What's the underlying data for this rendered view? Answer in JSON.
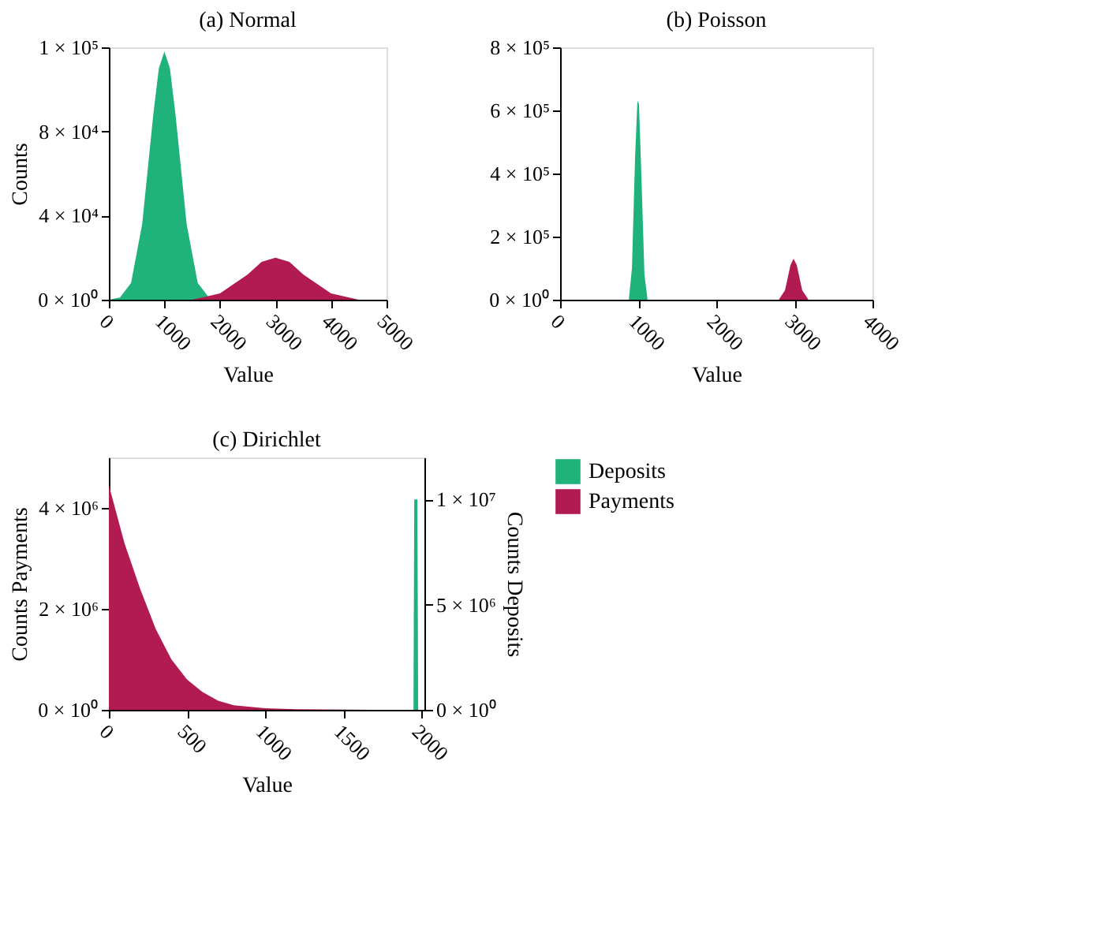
{
  "chart_data": [
    {
      "type": "area",
      "title": "(a) Normal",
      "xlabel": "Value",
      "ylabel": "Counts",
      "xlim": [
        0,
        5000
      ],
      "xticks": [
        0,
        1000,
        2000,
        3000,
        4000,
        5000
      ],
      "ylim": [
        0,
        120000
      ],
      "yticks": [
        {
          "value": 0,
          "label": "0 × 10⁰"
        },
        {
          "value": 40000,
          "label": "4 × 10⁴"
        },
        {
          "value": 80000,
          "label": "8 × 10⁴"
        },
        {
          "value": 120000,
          "label": "1 × 10⁵"
        }
      ],
      "series": [
        {
          "color": "#20b27b",
          "x": [
            0,
            200,
            400,
            600,
            800,
            900,
            1000,
            1100,
            1200,
            1400,
            1600,
            1800,
            2000
          ],
          "values": [
            0,
            1000,
            8000,
            36000,
            88000,
            110000,
            118000,
            110000,
            88000,
            36000,
            8000,
            1000,
            0
          ]
        },
        {
          "color": "#b11b52",
          "x": [
            1000,
            1500,
            2000,
            2500,
            2750,
            3000,
            3250,
            3500,
            4000,
            4500,
            5000
          ],
          "values": [
            0,
            0,
            3000,
            12000,
            18000,
            20000,
            18000,
            12000,
            3000,
            0,
            0
          ]
        }
      ]
    },
    {
      "type": "area",
      "title": "(b) Poisson",
      "xlabel": "Value",
      "xlim": [
        0,
        4000
      ],
      "xticks": [
        0,
        1000,
        2000,
        3000,
        4000
      ],
      "ylim": [
        0,
        800000
      ],
      "yticks": [
        {
          "value": 0,
          "label": "0 × 10⁰"
        },
        {
          "value": 200000,
          "label": "2 × 10⁵"
        },
        {
          "value": 400000,
          "label": "4 × 10⁵"
        },
        {
          "value": 600000,
          "label": "6 × 10⁵"
        },
        {
          "value": 800000,
          "label": "8 × 10⁵"
        }
      ],
      "series": [
        {
          "color": "#20b27b",
          "x": [
            880,
            920,
            960,
            990,
            1010,
            1040,
            1080,
            1120
          ],
          "values": [
            0,
            100000,
            450000,
            630000,
            620000,
            400000,
            80000,
            0
          ]
        },
        {
          "color": "#b11b52",
          "x": [
            2800,
            2880,
            2950,
            2990,
            3030,
            3100,
            3180
          ],
          "values": [
            0,
            30000,
            110000,
            130000,
            110000,
            30000,
            0
          ]
        }
      ]
    },
    {
      "type": "area",
      "title": "(c) Dirichlet",
      "xlabel": "Value",
      "ylabel": "Counts Payments",
      "y2label": "Counts Deposits",
      "legend": "right",
      "xlim": [
        0,
        2020
      ],
      "xticks": [
        0,
        500,
        1000,
        1500,
        2000
      ],
      "ylim": [
        0,
        5000000
      ],
      "yticks": [
        {
          "value": 0,
          "label": "0 × 10⁰"
        },
        {
          "value": 2000000,
          "label": "2 × 10⁶"
        },
        {
          "value": 4000000,
          "label": "4 × 10⁶"
        }
      ],
      "y2lim": [
        0,
        12000000
      ],
      "y2ticks": [
        {
          "value": 0,
          "label": "0 × 10⁰"
        },
        {
          "value": 5000000,
          "label": "5 × 10⁶"
        },
        {
          "value": 10000000,
          "label": "1 × 10⁷"
        }
      ],
      "series": [
        {
          "name": "Deposits",
          "color": "#20b27b",
          "axis": "y2",
          "x": [
            1950,
            1955,
            1975,
            1980
          ],
          "values": [
            0,
            10000000,
            10000000,
            0
          ]
        },
        {
          "name": "Payments",
          "color": "#b11b52",
          "x": [
            0,
            100,
            200,
            300,
            400,
            500,
            600,
            700,
            800,
            1000,
            1200,
            1700
          ],
          "values": [
            4450000,
            3300000,
            2400000,
            1600000,
            1000000,
            600000,
            350000,
            180000,
            90000,
            30000,
            10000,
            0
          ]
        }
      ]
    }
  ]
}
